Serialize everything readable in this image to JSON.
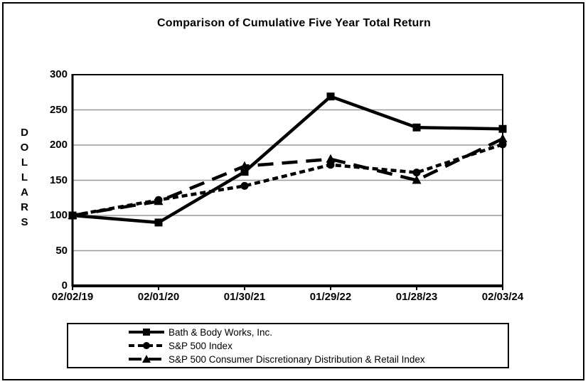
{
  "chart_data": {
    "type": "line",
    "title": "Comparison of Cumulative Five Year Total Return",
    "ylabel": "DOLLARS",
    "xlabel": "",
    "ylim": [
      0,
      300
    ],
    "ytick_step": 50,
    "yticks": [
      "300",
      "250",
      "200",
      "150",
      "100",
      "50",
      "0"
    ],
    "categories": [
      "02/02/19",
      "02/01/20",
      "01/30/21",
      "01/29/22",
      "01/28/23",
      "02/03/24"
    ],
    "series": [
      {
        "name": "Bath & Body Works, Inc.",
        "marker": "square",
        "line_style": "solid",
        "values": [
          100,
          90,
          162,
          269,
          225,
          223
        ]
      },
      {
        "name": "S&P 500 Index",
        "marker": "circle",
        "line_style": "short-dash",
        "values": [
          100,
          122,
          142,
          172,
          161,
          201
        ]
      },
      {
        "name": "S&P 500 Consumer Discretionary Distribution & Retail Index",
        "marker": "triangle",
        "line_style": "long-dash",
        "values": [
          100,
          120,
          170,
          180,
          150,
          209
        ]
      }
    ],
    "grid": true,
    "legend_position": "bottom",
    "colors": {
      "series": "#000000",
      "gridline": "#999999",
      "background": "#ffffff",
      "border": "#000000"
    }
  }
}
